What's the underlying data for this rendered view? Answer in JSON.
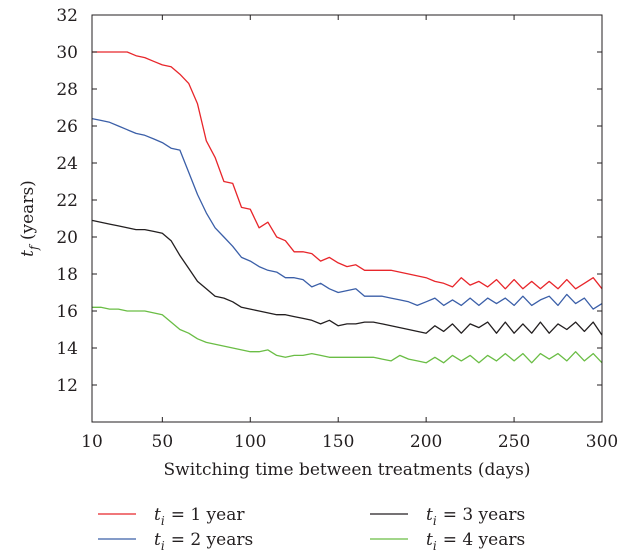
{
  "chart_data": {
    "type": "line",
    "xlabel": "Switching time between treatments (days)",
    "ylabel": {
      "var": "t",
      "sub": "f",
      "unit": " (years)"
    },
    "xlim": [
      10,
      300
    ],
    "ylim": [
      10,
      32
    ],
    "xticks": [
      10,
      50,
      100,
      150,
      200,
      250,
      300
    ],
    "yticks": [
      12,
      14,
      16,
      18,
      20,
      22,
      24,
      26,
      28,
      30,
      32
    ],
    "grid": false,
    "legend_position": "bottom",
    "series": [
      {
        "name": "= 1 year",
        "legend_var": "t",
        "legend_sub": "i",
        "color": "#e8262b",
        "x": [
          10,
          15,
          20,
          25,
          30,
          35,
          40,
          45,
          50,
          55,
          60,
          65,
          70,
          75,
          80,
          85,
          90,
          95,
          100,
          105,
          110,
          115,
          120,
          125,
          130,
          135,
          140,
          145,
          150,
          155,
          160,
          165,
          170,
          175,
          180,
          185,
          190,
          195,
          200,
          205,
          210,
          215,
          220,
          225,
          230,
          235,
          240,
          245,
          250,
          255,
          260,
          265,
          270,
          275,
          280,
          285,
          290,
          295,
          300
        ],
        "values": [
          30.0,
          30.0,
          30.0,
          30.0,
          30.0,
          29.8,
          29.7,
          29.5,
          29.3,
          29.2,
          28.8,
          28.3,
          27.2,
          25.2,
          24.3,
          23.0,
          22.9,
          21.6,
          21.5,
          20.5,
          20.8,
          20.0,
          19.8,
          19.2,
          19.2,
          19.1,
          18.7,
          18.9,
          18.6,
          18.4,
          18.5,
          18.2,
          18.2,
          18.2,
          18.2,
          18.1,
          18.0,
          17.9,
          17.8,
          17.6,
          17.5,
          17.3,
          17.8,
          17.4,
          17.6,
          17.3,
          17.7,
          17.2,
          17.7,
          17.2,
          17.6,
          17.2,
          17.6,
          17.2,
          17.7,
          17.2,
          17.5,
          17.8,
          17.2
        ]
      },
      {
        "name": "= 2 years",
        "legend_var": "t",
        "legend_sub": "i",
        "color": "#3b5fa8",
        "x": [
          10,
          15,
          20,
          25,
          30,
          35,
          40,
          45,
          50,
          55,
          60,
          65,
          70,
          75,
          80,
          85,
          90,
          95,
          100,
          105,
          110,
          115,
          120,
          125,
          130,
          135,
          140,
          145,
          150,
          155,
          160,
          165,
          170,
          175,
          180,
          185,
          190,
          195,
          200,
          205,
          210,
          215,
          220,
          225,
          230,
          235,
          240,
          245,
          250,
          255,
          260,
          265,
          270,
          275,
          280,
          285,
          290,
          295,
          300
        ],
        "values": [
          26.4,
          26.3,
          26.2,
          26.0,
          25.8,
          25.6,
          25.5,
          25.3,
          25.1,
          24.8,
          24.7,
          23.5,
          22.3,
          21.3,
          20.5,
          20.0,
          19.5,
          18.9,
          18.7,
          18.4,
          18.2,
          18.1,
          17.8,
          17.8,
          17.7,
          17.3,
          17.5,
          17.2,
          17.0,
          17.1,
          17.2,
          16.8,
          16.8,
          16.8,
          16.7,
          16.6,
          16.5,
          16.3,
          16.5,
          16.7,
          16.3,
          16.6,
          16.3,
          16.7,
          16.3,
          16.7,
          16.4,
          16.7,
          16.3,
          16.8,
          16.3,
          16.6,
          16.8,
          16.3,
          16.9,
          16.4,
          16.7,
          16.1,
          16.4
        ]
      },
      {
        "name": "= 3 years",
        "legend_var": "t",
        "legend_sub": "i",
        "color": "#231f20",
        "x": [
          10,
          15,
          20,
          25,
          30,
          35,
          40,
          45,
          50,
          55,
          60,
          65,
          70,
          75,
          80,
          85,
          90,
          95,
          100,
          105,
          110,
          115,
          120,
          125,
          130,
          135,
          140,
          145,
          150,
          155,
          160,
          165,
          170,
          175,
          180,
          185,
          190,
          195,
          200,
          205,
          210,
          215,
          220,
          225,
          230,
          235,
          240,
          245,
          250,
          255,
          260,
          265,
          270,
          275,
          280,
          285,
          290,
          295,
          300
        ],
        "values": [
          20.9,
          20.8,
          20.7,
          20.6,
          20.5,
          20.4,
          20.4,
          20.3,
          20.2,
          19.8,
          19.0,
          18.3,
          17.6,
          17.2,
          16.8,
          16.7,
          16.5,
          16.2,
          16.1,
          16.0,
          15.9,
          15.8,
          15.8,
          15.7,
          15.6,
          15.5,
          15.3,
          15.5,
          15.2,
          15.3,
          15.3,
          15.4,
          15.4,
          15.3,
          15.2,
          15.1,
          15.0,
          14.9,
          14.8,
          15.2,
          14.9,
          15.3,
          14.8,
          15.3,
          15.1,
          15.4,
          14.8,
          15.4,
          14.8,
          15.3,
          14.8,
          15.4,
          14.8,
          15.3,
          15.0,
          15.4,
          14.9,
          15.4,
          14.7
        ]
      },
      {
        "name": "= 4 years",
        "legend_var": "t",
        "legend_sub": "i",
        "color": "#6abd45",
        "x": [
          10,
          15,
          20,
          25,
          30,
          35,
          40,
          45,
          50,
          55,
          60,
          65,
          70,
          75,
          80,
          85,
          90,
          95,
          100,
          105,
          110,
          115,
          120,
          125,
          130,
          135,
          140,
          145,
          150,
          155,
          160,
          165,
          170,
          175,
          180,
          185,
          190,
          195,
          200,
          205,
          210,
          215,
          220,
          225,
          230,
          235,
          240,
          245,
          250,
          255,
          260,
          265,
          270,
          275,
          280,
          285,
          290,
          295,
          300
        ],
        "values": [
          16.2,
          16.2,
          16.1,
          16.1,
          16.0,
          16.0,
          16.0,
          15.9,
          15.8,
          15.4,
          15.0,
          14.8,
          14.5,
          14.3,
          14.2,
          14.1,
          14.0,
          13.9,
          13.8,
          13.8,
          13.9,
          13.6,
          13.5,
          13.6,
          13.6,
          13.7,
          13.6,
          13.5,
          13.5,
          13.5,
          13.5,
          13.5,
          13.5,
          13.4,
          13.3,
          13.6,
          13.4,
          13.3,
          13.2,
          13.5,
          13.2,
          13.6,
          13.3,
          13.6,
          13.2,
          13.6,
          13.3,
          13.7,
          13.3,
          13.7,
          13.2,
          13.7,
          13.4,
          13.7,
          13.3,
          13.8,
          13.3,
          13.7,
          13.2
        ]
      }
    ]
  }
}
